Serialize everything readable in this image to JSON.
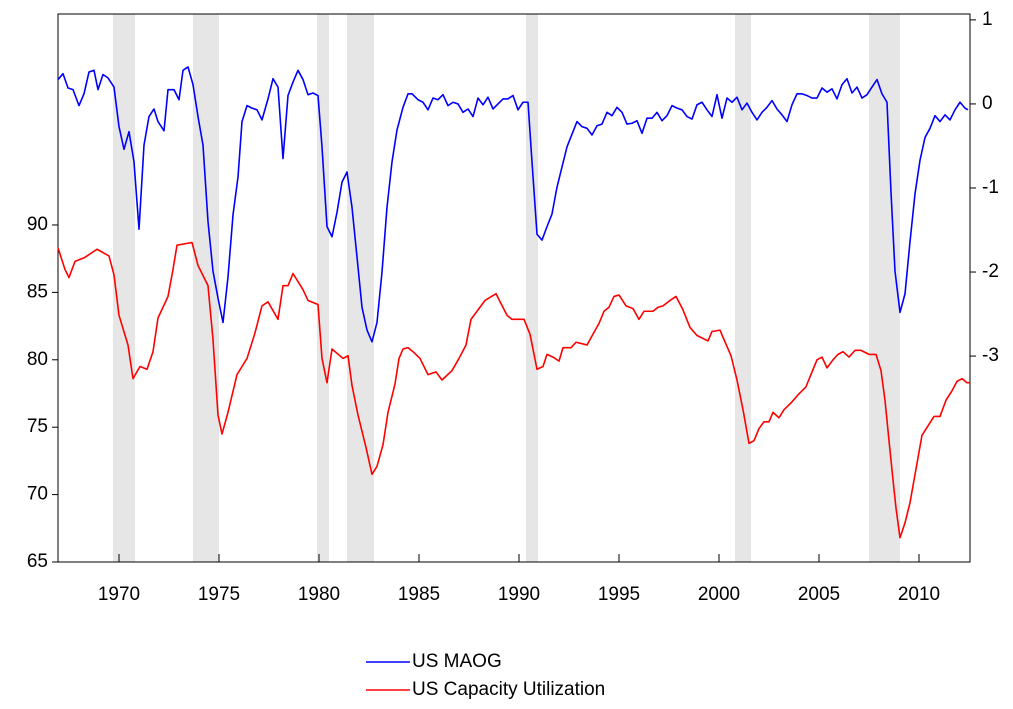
{
  "chart_data": {
    "type": "line",
    "xlim": [
      1966.95,
      2012.55
    ],
    "xticks": [
      1970,
      1975,
      1980,
      1985,
      1990,
      1995,
      2000,
      2005,
      2010
    ],
    "ylim": [
      65,
      105.65
    ],
    "yticks": [
      65,
      70,
      75,
      80,
      85,
      90
    ],
    "y2lim": [
      -5.45,
      1.07
    ],
    "y2ticks": [
      -3,
      -2,
      -1,
      0,
      1
    ],
    "shaded_periods": [
      [
        1969.7,
        1970.8
      ],
      [
        1973.7,
        1975.0
      ],
      [
        1979.9,
        1980.5
      ],
      [
        1981.4,
        1982.75
      ],
      [
        1990.35,
        1990.95
      ],
      [
        2000.8,
        2001.6
      ],
      [
        2007.5,
        2009.05
      ]
    ],
    "shade_color": "#e6e6e6",
    "legend": "bottom",
    "series": [
      {
        "name": "US MAOG",
        "color": "#0000ff",
        "axis": "y2",
        "x": [
          1966.95,
          1967.2,
          1967.45,
          1967.7,
          1968.0,
          1968.25,
          1968.5,
          1968.75,
          1968.95,
          1969.2,
          1969.45,
          1969.75,
          1970.0,
          1970.25,
          1970.5,
          1970.75,
          1971.0,
          1971.25,
          1971.5,
          1971.75,
          1971.95,
          1972.25,
          1972.45,
          1972.75,
          1973.0,
          1973.2,
          1973.45,
          1973.7,
          1973.95,
          1974.2,
          1974.45,
          1974.7,
          1974.95,
          1975.2,
          1975.45,
          1975.7,
          1975.95,
          1976.15,
          1976.4,
          1976.65,
          1976.9,
          1977.15,
          1977.45,
          1977.7,
          1977.95,
          1978.2,
          1978.45,
          1978.7,
          1978.95,
          1979.2,
          1979.45,
          1979.7,
          1979.95,
          1980.15,
          1980.4,
          1980.65,
          1980.9,
          1981.15,
          1981.4,
          1981.65,
          1981.9,
          1982.15,
          1982.4,
          1982.65,
          1982.9,
          1983.15,
          1983.4,
          1983.65,
          1983.9,
          1984.2,
          1984.45,
          1984.65,
          1984.95,
          1985.2,
          1985.45,
          1985.7,
          1985.95,
          1986.2,
          1986.45,
          1986.7,
          1986.95,
          1987.2,
          1987.45,
          1987.7,
          1987.95,
          1988.2,
          1988.45,
          1988.7,
          1988.95,
          1989.2,
          1989.45,
          1989.7,
          1989.95,
          1990.2,
          1990.45,
          1990.65,
          1990.9,
          1991.15,
          1991.4,
          1991.65,
          1991.9,
          1992.15,
          1992.4,
          1992.65,
          1992.9,
          1993.15,
          1993.4,
          1993.65,
          1993.9,
          1994.15,
          1994.4,
          1994.65,
          1994.9,
          1995.15,
          1995.4,
          1995.65,
          1995.9,
          1996.15,
          1996.4,
          1996.65,
          1996.9,
          1997.15,
          1997.4,
          1997.65,
          1997.9,
          1998.15,
          1998.4,
          1998.65,
          1998.9,
          1999.15,
          1999.4,
          1999.65,
          1999.9,
          2000.15,
          2000.4,
          2000.65,
          2000.9,
          2001.15,
          2001.4,
          2001.65,
          2001.9,
          2002.15,
          2002.4,
          2002.65,
          2002.9,
          2003.15,
          2003.4,
          2003.65,
          2003.9,
          2004.15,
          2004.4,
          2004.65,
          2004.9,
          2005.15,
          2005.4,
          2005.65,
          2005.9,
          2006.15,
          2006.4,
          2006.65,
          2006.9,
          2007.15,
          2007.4,
          2007.65,
          2007.9,
          2008.15,
          2008.4,
          2008.6,
          2008.8,
          2009.05,
          2009.3,
          2009.55,
          2009.8,
          2010.05,
          2010.3,
          2010.55,
          2010.8,
          2011.05,
          2011.3,
          2011.55,
          2011.8,
          2012.05,
          2012.3,
          2012.45
        ],
        "values": [
          0.29,
          0.36,
          0.19,
          0.17,
          -0.02,
          0.12,
          0.38,
          0.4,
          0.17,
          0.35,
          0.31,
          0.2,
          -0.27,
          -0.54,
          -0.33,
          -0.69,
          -1.49,
          -0.49,
          -0.15,
          -0.06,
          -0.21,
          -0.32,
          0.17,
          0.17,
          0.05,
          0.4,
          0.44,
          0.23,
          -0.15,
          -0.49,
          -1.4,
          -1.99,
          -2.31,
          -2.6,
          -2.06,
          -1.32,
          -0.87,
          -0.21,
          -0.02,
          -0.05,
          -0.07,
          -0.19,
          0.06,
          0.3,
          0.2,
          -0.65,
          0.1,
          0.26,
          0.4,
          0.29,
          0.11,
          0.13,
          0.1,
          -0.51,
          -1.46,
          -1.58,
          -1.29,
          -0.93,
          -0.81,
          -1.23,
          -1.82,
          -2.42,
          -2.69,
          -2.83,
          -2.6,
          -2.0,
          -1.23,
          -0.69,
          -0.31,
          -0.04,
          0.12,
          0.12,
          0.05,
          0.02,
          -0.07,
          0.07,
          0.05,
          0.11,
          -0.02,
          0.02,
          0,
          -0.1,
          -0.06,
          -0.15,
          0.07,
          -0.01,
          0.08,
          -0.06,
          0,
          0.06,
          0.06,
          0.1,
          -0.07,
          0.02,
          0.02,
          -0.69,
          -1.55,
          -1.62,
          -1.46,
          -1.31,
          -0.99,
          -0.75,
          -0.51,
          -0.36,
          -0.21,
          -0.27,
          -0.29,
          -0.37,
          -0.26,
          -0.24,
          -0.1,
          -0.14,
          -0.04,
          -0.1,
          -0.24,
          -0.23,
          -0.2,
          -0.35,
          -0.17,
          -0.17,
          -0.1,
          -0.2,
          -0.14,
          -0.02,
          -0.05,
          -0.07,
          -0.15,
          -0.18,
          -0.01,
          0.02,
          -0.07,
          -0.15,
          0.11,
          -0.17,
          0.07,
          0.02,
          0.08,
          -0.07,
          0.01,
          -0.1,
          -0.19,
          -0.1,
          -0.04,
          0.04,
          -0.06,
          -0.13,
          -0.21,
          -0.01,
          0.12,
          0.12,
          0.1,
          0.07,
          0.07,
          0.19,
          0.14,
          0.18,
          0.06,
          0.23,
          0.3,
          0.13,
          0.2,
          0.07,
          0.11,
          0.2,
          0.29,
          0.12,
          0.02,
          -1.05,
          -1.99,
          -2.48,
          -2.26,
          -1.64,
          -1.07,
          -0.67,
          -0.4,
          -0.29,
          -0.14,
          -0.21,
          -0.13,
          -0.19,
          -0.07,
          0.02,
          -0.05,
          -0.07
        ]
      },
      {
        "name": "US Capacity Utilization",
        "color": "#ff0000",
        "x": [
          1966.95,
          1967.3,
          1967.5,
          1967.8,
          1968.3,
          1968.9,
          1969.5,
          1969.75,
          1970.0,
          1970.45,
          1970.7,
          1971.05,
          1971.4,
          1971.7,
          1971.95,
          1972.45,
          1972.7,
          1972.9,
          1973.65,
          1973.95,
          1974.45,
          1974.7,
          1974.95,
          1975.15,
          1975.45,
          1975.9,
          1976.4,
          1976.8,
          1977.15,
          1977.45,
          1977.95,
          1978.2,
          1978.45,
          1978.7,
          1979.2,
          1979.45,
          1979.95,
          1980.15,
          1980.4,
          1980.65,
          1981.2,
          1981.45,
          1981.65,
          1981.95,
          1982.35,
          1982.65,
          1982.9,
          1983.2,
          1983.45,
          1983.8,
          1984.0,
          1984.2,
          1984.45,
          1984.7,
          1985.05,
          1985.45,
          1985.85,
          1986.15,
          1986.65,
          1987.0,
          1987.35,
          1987.6,
          1987.95,
          1988.3,
          1988.85,
          1989.4,
          1989.65,
          1990.25,
          1990.55,
          1990.9,
          1991.2,
          1991.4,
          1991.7,
          1992.0,
          1992.2,
          1992.6,
          1992.85,
          1993.4,
          1993.7,
          1994.0,
          1994.25,
          1994.5,
          1994.75,
          1995.0,
          1995.35,
          1995.7,
          1996.0,
          1996.25,
          1996.7,
          1996.95,
          1997.2,
          1997.55,
          1997.85,
          1998.2,
          1998.55,
          1998.9,
          1999.45,
          1999.65,
          2000.05,
          2000.25,
          2000.6,
          2000.9,
          2001.2,
          2001.5,
          2001.75,
          2002.0,
          2002.25,
          2002.5,
          2002.7,
          2003.0,
          2003.25,
          2003.6,
          2003.95,
          2004.35,
          2004.65,
          2004.9,
          2005.15,
          2005.4,
          2005.7,
          2005.95,
          2006.2,
          2006.5,
          2006.8,
          2007.1,
          2007.5,
          2007.85,
          2008.1,
          2008.3,
          2008.5,
          2008.7,
          2008.85,
          2009.05,
          2009.3,
          2009.55,
          2009.85,
          2010.15,
          2010.45,
          2010.75,
          2011.05,
          2011.35,
          2011.65,
          2011.9,
          2012.15,
          2012.4,
          2012.55
        ],
        "values": [
          88.3,
          86.7,
          86.1,
          87.3,
          87.6,
          88.2,
          87.7,
          86.3,
          83.3,
          81.1,
          78.6,
          79.5,
          79.3,
          80.6,
          83.1,
          84.7,
          86.7,
          88.5,
          88.7,
          87.0,
          85.5,
          81.5,
          75.9,
          74.5,
          76.1,
          78.9,
          80.1,
          82.0,
          84.0,
          84.3,
          83.0,
          85.5,
          85.5,
          86.4,
          85.2,
          84.4,
          84.1,
          80.1,
          78.3,
          80.8,
          80.1,
          80.3,
          78.1,
          75.9,
          73.5,
          71.5,
          72.1,
          73.7,
          76.1,
          78.2,
          80.1,
          80.8,
          80.9,
          80.6,
          80.1,
          78.9,
          79.1,
          78.5,
          79.2,
          80.1,
          81.1,
          83.0,
          83.7,
          84.4,
          84.9,
          83.3,
          83.0,
          83.0,
          81.9,
          79.3,
          79.5,
          80.4,
          80.2,
          79.9,
          80.9,
          80.9,
          81.3,
          81.1,
          81.9,
          82.7,
          83.6,
          83.9,
          84.7,
          84.8,
          84.0,
          83.8,
          83.0,
          83.6,
          83.6,
          83.9,
          84.0,
          84.4,
          84.7,
          83.7,
          82.4,
          81.8,
          81.4,
          82.1,
          82.2,
          81.5,
          80.3,
          78.5,
          76.3,
          73.8,
          74.0,
          74.9,
          75.4,
          75.4,
          76.1,
          75.7,
          76.3,
          76.8,
          77.4,
          78.0,
          79.1,
          80.0,
          80.2,
          79.4,
          80.0,
          80.4,
          80.6,
          80.2,
          80.7,
          80.7,
          80.4,
          80.4,
          79.2,
          77.0,
          74.0,
          71.1,
          69.0,
          66.8,
          67.9,
          69.4,
          71.9,
          74.4,
          75.1,
          75.8,
          75.8,
          77.0,
          77.7,
          78.4,
          78.6,
          78.3,
          78.3
        ]
      }
    ]
  }
}
